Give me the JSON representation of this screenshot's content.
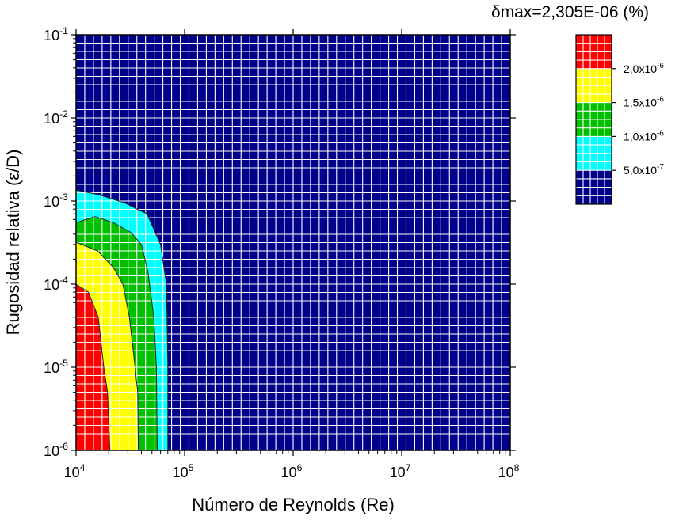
{
  "chart_data": {
    "type": "heatmap",
    "title": "δmax=2,305E-06 (%)",
    "xlabel": "Número de Reynolds (Re)",
    "ylabel": "Rugosidad relativa (ε/D)",
    "x_scale": "log",
    "y_scale": "log",
    "xlim": [
      10000,
      100000000
    ],
    "ylim": [
      1e-06,
      0.1
    ],
    "x_ticks": [
      {
        "value": 10000,
        "base": "10",
        "exp": "4"
      },
      {
        "value": 100000,
        "base": "10",
        "exp": "5"
      },
      {
        "value": 1000000,
        "base": "10",
        "exp": "6"
      },
      {
        "value": 10000000,
        "base": "10",
        "exp": "7"
      },
      {
        "value": 100000000,
        "base": "10",
        "exp": "8"
      }
    ],
    "y_ticks": [
      {
        "value": 1e-06,
        "base": "10",
        "exp": "-6"
      },
      {
        "value": 1e-05,
        "base": "10",
        "exp": "-5"
      },
      {
        "value": 0.0001,
        "base": "10",
        "exp": "-4"
      },
      {
        "value": 0.001,
        "base": "10",
        "exp": "-3"
      },
      {
        "value": 0.01,
        "base": "10",
        "exp": "-2"
      },
      {
        "value": 0.1,
        "base": "10",
        "exp": "-1"
      }
    ],
    "grid": true,
    "levels": [
      {
        "from": 0,
        "to": 5e-07,
        "color": "#00008b"
      },
      {
        "from": 5e-07,
        "to": 1e-06,
        "color": "#00ffff"
      },
      {
        "from": 1e-06,
        "to": 1.5e-06,
        "color": "#00c000"
      },
      {
        "from": 1.5e-06,
        "to": 2e-06,
        "color": "#ffff00"
      },
      {
        "from": 2e-06,
        "to": 2.305e-06,
        "color": "#ff0000"
      }
    ],
    "legend_labels": [
      {
        "value": 2e-06,
        "mant": "2,0x10",
        "exp": "-6"
      },
      {
        "value": 1.5e-06,
        "mant": "1,5x10",
        "exp": "-6"
      },
      {
        "value": 1e-06,
        "mant": "1,0x10",
        "exp": "-6"
      },
      {
        "value": 5e-07,
        "mant": "5,0x10",
        "exp": "-7"
      }
    ],
    "contours": [
      {
        "level": 5e-07,
        "points": [
          [
            10000,
            0.00135
          ],
          [
            15800,
            0.0012
          ],
          [
            28000,
            0.00095
          ],
          [
            45000,
            0.0007
          ],
          [
            60000,
            0.0003
          ],
          [
            68000,
            0.0001
          ],
          [
            70000,
            1e-05
          ],
          [
            70000,
            1e-06
          ]
        ]
      },
      {
        "level": 1e-06,
        "points": [
          [
            10000,
            0.00055
          ],
          [
            15000,
            0.00065
          ],
          [
            22000,
            0.00055
          ],
          [
            32000,
            0.00042
          ],
          [
            40000,
            0.0003
          ],
          [
            46000,
            0.00014
          ],
          [
            52000,
            4e-05
          ],
          [
            55000,
            1e-05
          ],
          [
            56000,
            1e-06
          ]
        ]
      },
      {
        "level": 1.5e-06,
        "points": [
          [
            10000,
            0.00032
          ],
          [
            15800,
            0.00025
          ],
          [
            22000,
            0.00016
          ],
          [
            27000,
            0.0001
          ],
          [
            31000,
            4e-05
          ],
          [
            34000,
            1.4e-05
          ],
          [
            37000,
            5e-06
          ],
          [
            37500,
            1e-06
          ]
        ]
      },
      {
        "level": 2e-06,
        "points": [
          [
            10000,
            0.0001
          ],
          [
            13000,
            8e-05
          ],
          [
            16000,
            4e-05
          ],
          [
            18000,
            1e-05
          ],
          [
            19500,
            5e-06
          ],
          [
            20500,
            1e-06
          ]
        ]
      }
    ]
  }
}
